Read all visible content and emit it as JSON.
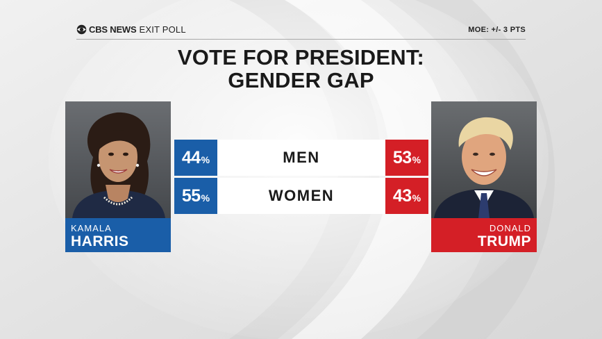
{
  "header": {
    "brand_bold": "CBS NEWS",
    "brand_light": "EXIT POLL",
    "moe": "MOE: +/- 3 PTS"
  },
  "title": {
    "line1": "VOTE FOR PRESIDENT:",
    "line2": "GENDER GAP"
  },
  "candidates": {
    "left": {
      "first": "KAMALA",
      "last": "HARRIS",
      "color": "#1a5ea8"
    },
    "right": {
      "first": "DONALD",
      "last": "TRUMP",
      "color": "#d41f26"
    }
  },
  "percent_sign": "%",
  "chart_data": {
    "type": "table",
    "title": "VOTE FOR PRESIDENT: GENDER GAP",
    "categories": [
      "MEN",
      "WOMEN"
    ],
    "series": [
      {
        "name": "HARRIS",
        "values": [
          44,
          55
        ]
      },
      {
        "name": "TRUMP",
        "values": [
          53,
          43
        ]
      }
    ]
  }
}
